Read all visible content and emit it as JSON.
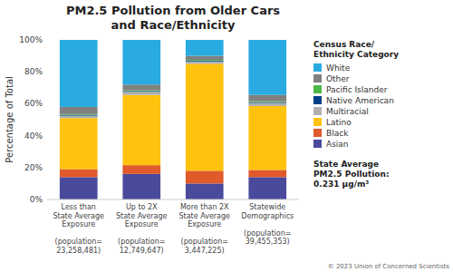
{
  "chart_data": {
    "type": "bar",
    "stacked": true,
    "title": "PM2.5 Pollution from Older Cars\nand Race/Ethnicity",
    "y_label": "Percentage of Total",
    "legend_title": "Census Race/\nEthnicity Category",
    "legend": "right",
    "grid": false,
    "categories": [
      "Less than\nState Average\nExposure\n\n(population=\n23,258,481)",
      "Up to 2X\nState Average\nExposure\n\n(population=\n12,749,647)",
      "More than 2X\nState Average\nExposure\n\n(population=\n3,447,225)",
      "Statewide\nDemographics\n\n(population=\n39,455,353)"
    ],
    "series": [
      {
        "name": "Asian",
        "color": "#4a4a9c",
        "values": [
          14.0,
          16.0,
          10.0,
          14.0
        ]
      },
      {
        "name": "Black",
        "color": "#e05a2b",
        "values": [
          5.0,
          5.5,
          8.0,
          4.5
        ]
      },
      {
        "name": "Latino",
        "color": "#ffc20e",
        "values": [
          32.0,
          44.0,
          67.0,
          40.0
        ]
      },
      {
        "name": "Multiracial",
        "color": "#b0b0b0",
        "values": [
          1.5,
          2.0,
          1.5,
          2.0
        ]
      },
      {
        "name": "Native American",
        "color": "#003f87",
        "values": [
          0.5,
          0.5,
          0.5,
          0.5
        ]
      },
      {
        "name": "Pacific Islander",
        "color": "#4db848",
        "values": [
          0.5,
          0.5,
          0.5,
          0.5
        ]
      },
      {
        "name": "Other",
        "color": "#808080",
        "values": [
          4.5,
          3.5,
          2.5,
          4.0
        ]
      },
      {
        "name": "White",
        "color": "#29ABE2",
        "values": [
          42.0,
          28.0,
          10.0,
          34.5
        ]
      }
    ],
    "ylim": [
      0,
      100
    ],
    "yticks": [
      {
        "value": 0,
        "label": "0%"
      },
      {
        "value": 20,
        "label": "20%"
      },
      {
        "value": 40,
        "label": "40%"
      },
      {
        "value": 60,
        "label": "60%"
      },
      {
        "value": 80,
        "label": "80%"
      },
      {
        "value": 100,
        "label": "100%"
      }
    ],
    "annotations": [
      "State Average\nPM2.5 Pollution:\n0.231 μg/m³",
      "© 2023 Union of Concerned Scientists"
    ]
  }
}
